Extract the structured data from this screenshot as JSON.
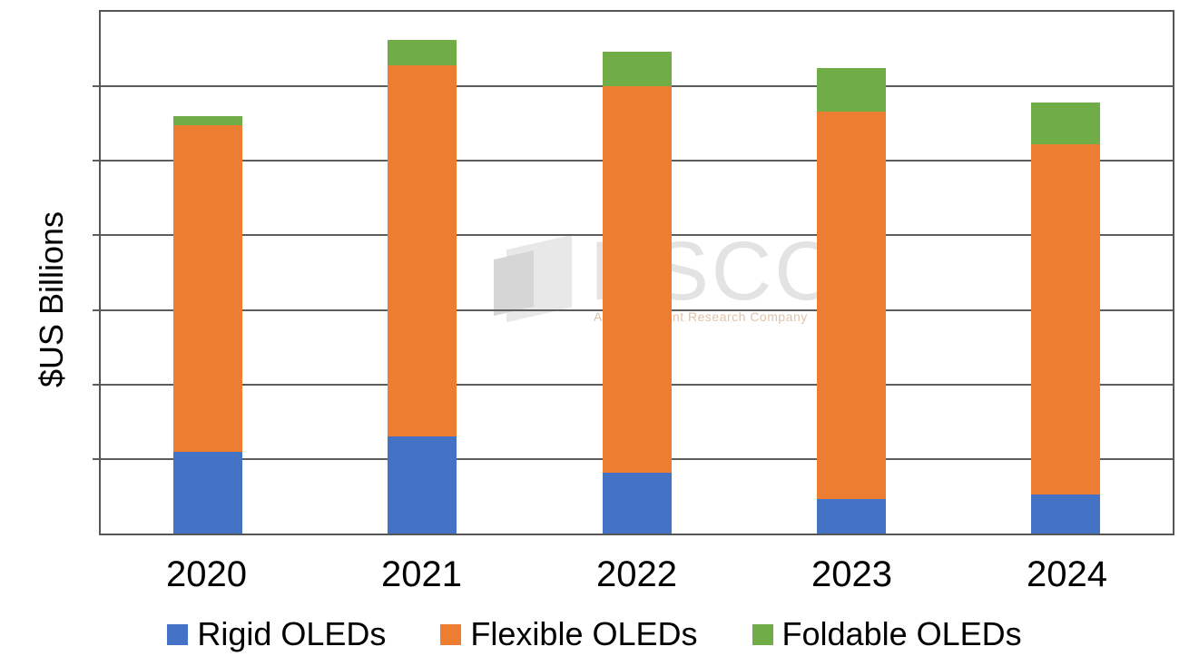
{
  "watermark": {
    "brand": "DSCC",
    "tagline": "A Counterpoint Research Company"
  },
  "chart_data": {
    "type": "bar",
    "stacked": true,
    "title": "",
    "xlabel": "",
    "ylabel": "$US Billions",
    "categories": [
      "2020",
      "2021",
      "2022",
      "2023",
      "2024"
    ],
    "series": [
      {
        "name": "Rigid OLEDs",
        "color": "#4472C4",
        "values": [
          5.5,
          6.5,
          4.1,
          2.3,
          2.6
        ]
      },
      {
        "name": "Flexible OLEDs",
        "color": "#ED7D31",
        "values": [
          21.9,
          24.9,
          25.9,
          26.0,
          23.5
        ]
      },
      {
        "name": "Foldable OLEDs",
        "color": "#70AD47",
        "values": [
          0.6,
          1.7,
          2.3,
          2.9,
          2.8
        ]
      }
    ],
    "totals": [
      28.0,
      33.1,
      32.3,
      31.2,
      28.9
    ],
    "ylim": [
      0,
      35
    ],
    "y_gridline_step": 5,
    "y_tick_labels_visible": false,
    "grid": true,
    "legend_position": "bottom",
    "axis_color": "#5d5d5d"
  }
}
